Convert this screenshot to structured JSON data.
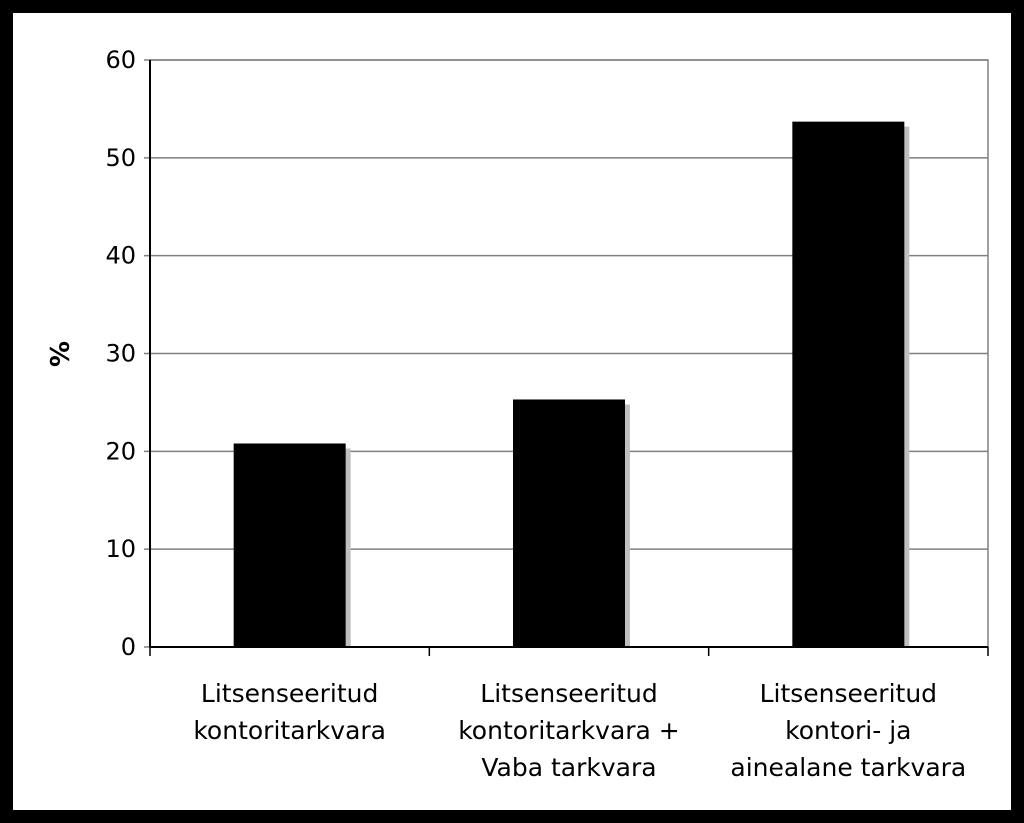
{
  "chart_data": {
    "type": "bar",
    "title": "",
    "xlabel": "",
    "ylabel": "%",
    "ylim": [
      0,
      60
    ],
    "yticks": [
      0,
      10,
      20,
      30,
      40,
      50,
      60
    ],
    "grid": true,
    "legend": "none",
    "categories": [
      [
        "Litsenseeritud",
        "kontoritarkvara"
      ],
      [
        "Litsenseeritud",
        "kontoritarkvara +",
        "Vaba tarkvara"
      ],
      [
        "Litsenseeritud",
        "kontori- ja",
        "ainealane tarkvara"
      ]
    ],
    "values": [
      20.8,
      25.3,
      53.7
    ],
    "colors": {
      "bar": "#000000",
      "bar_shadow": "#bfbfbf",
      "grid": "#808080",
      "frame": "#000000",
      "plot_background": "#ffffff"
    }
  }
}
